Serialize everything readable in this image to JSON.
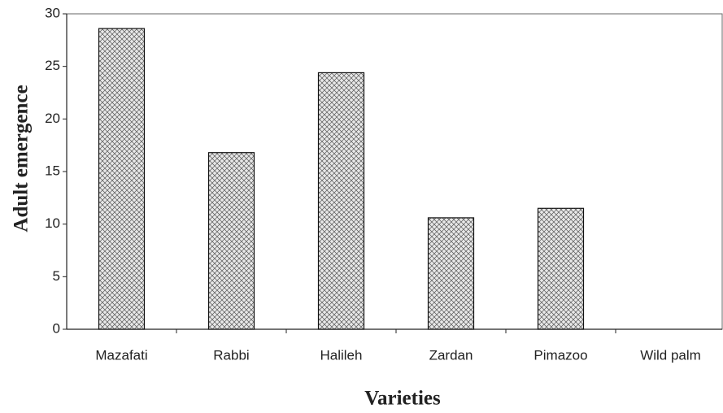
{
  "chart_data": {
    "type": "bar",
    "categories": [
      "Mazafati",
      "Rabbi",
      "Halileh",
      "Zardan",
      "Pimazoo",
      "Wild palm"
    ],
    "values": [
      28.6,
      16.8,
      24.4,
      10.6,
      11.5,
      0
    ],
    "xlabel": "Varieties",
    "ylabel": "Adult emergence",
    "ylim": [
      0,
      30
    ],
    "yticks": [
      0,
      5,
      10,
      15,
      20,
      25,
      30
    ],
    "grid": false
  }
}
